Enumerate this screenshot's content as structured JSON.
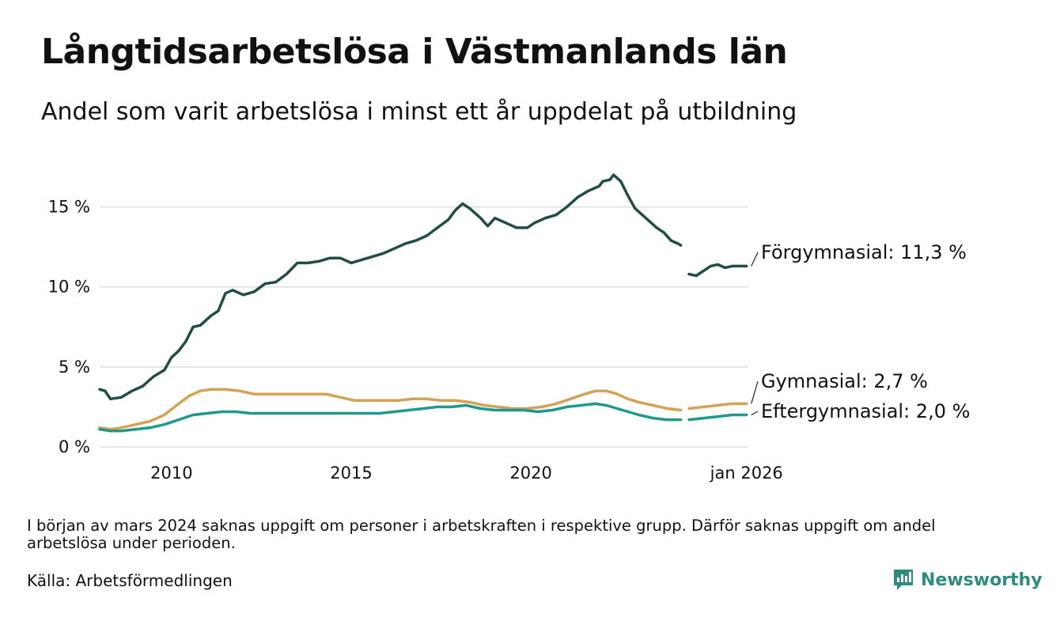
{
  "title": "Långtidsarbetslösa i Västmanlands län",
  "subtitle": "Andel som varit arbetslösa i minst ett år uppdelat på utbildning",
  "note": "I början av mars 2024 saknas uppgift om personer i arbetskraften i respektive grupp. Därför saknas uppgift om andel arbetslösa under perioden.",
  "source": "Källa: Arbetsförmedlingen",
  "brand": {
    "name": "Newsworthy",
    "icon": "newsworthy-logo-icon",
    "color": "#2d8c7e"
  },
  "chart_data": {
    "type": "line",
    "x_unit": "decimal year",
    "xlim": [
      2008.0,
      2026.05
    ],
    "ylim": [
      0,
      17.5
    ],
    "y_ticks": [
      {
        "value": 0,
        "label": "0 %"
      },
      {
        "value": 5,
        "label": "5 %"
      },
      {
        "value": 10,
        "label": "10 %"
      },
      {
        "value": 15,
        "label": "15 %"
      }
    ],
    "x_ticks": [
      {
        "value": 2010,
        "label": "2010"
      },
      {
        "value": 2015,
        "label": "2015"
      },
      {
        "value": 2020,
        "label": "2020"
      },
      {
        "value": 2026.0,
        "label": "jan 2026"
      }
    ],
    "grid": "horizontal",
    "gap": [
      2024.17,
      2024.4
    ],
    "series": [
      {
        "name": "Förgymnasial",
        "label": "Förgymnasial: 11,3 %",
        "color": "#214d47",
        "points": [
          [
            2008.0,
            3.6
          ],
          [
            2008.15,
            3.5
          ],
          [
            2008.3,
            3.0
          ],
          [
            2008.6,
            3.1
          ],
          [
            2008.9,
            3.5
          ],
          [
            2009.2,
            3.8
          ],
          [
            2009.5,
            4.4
          ],
          [
            2009.8,
            4.8
          ],
          [
            2010.0,
            5.6
          ],
          [
            2010.2,
            6.0
          ],
          [
            2010.4,
            6.6
          ],
          [
            2010.6,
            7.5
          ],
          [
            2010.8,
            7.6
          ],
          [
            2011.1,
            8.2
          ],
          [
            2011.3,
            8.5
          ],
          [
            2011.5,
            9.6
          ],
          [
            2011.7,
            9.8
          ],
          [
            2012.0,
            9.5
          ],
          [
            2012.3,
            9.7
          ],
          [
            2012.6,
            10.2
          ],
          [
            2012.9,
            10.3
          ],
          [
            2013.2,
            10.8
          ],
          [
            2013.5,
            11.5
          ],
          [
            2013.8,
            11.5
          ],
          [
            2014.1,
            11.6
          ],
          [
            2014.4,
            11.8
          ],
          [
            2014.7,
            11.8
          ],
          [
            2015.0,
            11.5
          ],
          [
            2015.3,
            11.7
          ],
          [
            2015.6,
            11.9
          ],
          [
            2015.9,
            12.1
          ],
          [
            2016.2,
            12.4
          ],
          [
            2016.5,
            12.7
          ],
          [
            2016.8,
            12.9
          ],
          [
            2017.1,
            13.2
          ],
          [
            2017.4,
            13.7
          ],
          [
            2017.7,
            14.2
          ],
          [
            2017.9,
            14.8
          ],
          [
            2018.1,
            15.2
          ],
          [
            2018.3,
            14.9
          ],
          [
            2018.6,
            14.3
          ],
          [
            2018.8,
            13.8
          ],
          [
            2019.0,
            14.3
          ],
          [
            2019.3,
            14.0
          ],
          [
            2019.6,
            13.7
          ],
          [
            2019.9,
            13.7
          ],
          [
            2020.1,
            14.0
          ],
          [
            2020.4,
            14.3
          ],
          [
            2020.7,
            14.5
          ],
          [
            2021.0,
            15.0
          ],
          [
            2021.3,
            15.6
          ],
          [
            2021.6,
            16.0
          ],
          [
            2021.9,
            16.3
          ],
          [
            2022.0,
            16.6
          ],
          [
            2022.2,
            16.7
          ],
          [
            2022.3,
            17.0
          ],
          [
            2022.5,
            16.6
          ],
          [
            2022.7,
            15.7
          ],
          [
            2022.9,
            14.9
          ],
          [
            2023.1,
            14.5
          ],
          [
            2023.3,
            14.1
          ],
          [
            2023.5,
            13.7
          ],
          [
            2023.7,
            13.4
          ],
          [
            2023.9,
            12.9
          ],
          [
            2024.1,
            12.7
          ],
          [
            2024.17,
            12.6
          ],
          null,
          [
            2024.4,
            10.8
          ],
          [
            2024.6,
            10.7
          ],
          [
            2024.8,
            11.0
          ],
          [
            2025.0,
            11.3
          ],
          [
            2025.2,
            11.4
          ],
          [
            2025.4,
            11.2
          ],
          [
            2025.6,
            11.3
          ],
          [
            2025.8,
            11.3
          ],
          [
            2026.0,
            11.3
          ]
        ]
      },
      {
        "name": "Gymnasial",
        "label": "Gymnasial:  2,7 %",
        "color": "#d4a155",
        "points": [
          [
            2008.0,
            1.2
          ],
          [
            2008.3,
            1.1
          ],
          [
            2008.6,
            1.2
          ],
          [
            2009.0,
            1.4
          ],
          [
            2009.4,
            1.6
          ],
          [
            2009.8,
            2.0
          ],
          [
            2010.2,
            2.7
          ],
          [
            2010.5,
            3.2
          ],
          [
            2010.8,
            3.5
          ],
          [
            2011.1,
            3.6
          ],
          [
            2011.5,
            3.6
          ],
          [
            2011.9,
            3.5
          ],
          [
            2012.3,
            3.3
          ],
          [
            2012.7,
            3.3
          ],
          [
            2013.1,
            3.3
          ],
          [
            2013.5,
            3.3
          ],
          [
            2013.9,
            3.3
          ],
          [
            2014.3,
            3.3
          ],
          [
            2014.7,
            3.1
          ],
          [
            2015.1,
            2.9
          ],
          [
            2015.5,
            2.9
          ],
          [
            2015.9,
            2.9
          ],
          [
            2016.3,
            2.9
          ],
          [
            2016.7,
            3.0
          ],
          [
            2017.1,
            3.0
          ],
          [
            2017.5,
            2.9
          ],
          [
            2017.9,
            2.9
          ],
          [
            2018.3,
            2.8
          ],
          [
            2018.7,
            2.6
          ],
          [
            2019.1,
            2.5
          ],
          [
            2019.5,
            2.4
          ],
          [
            2019.9,
            2.4
          ],
          [
            2020.3,
            2.5
          ],
          [
            2020.7,
            2.7
          ],
          [
            2021.1,
            3.0
          ],
          [
            2021.5,
            3.3
          ],
          [
            2021.8,
            3.5
          ],
          [
            2022.1,
            3.5
          ],
          [
            2022.4,
            3.3
          ],
          [
            2022.7,
            3.0
          ],
          [
            2023.0,
            2.8
          ],
          [
            2023.4,
            2.6
          ],
          [
            2023.8,
            2.4
          ],
          [
            2024.17,
            2.3
          ],
          null,
          [
            2024.4,
            2.4
          ],
          [
            2024.8,
            2.5
          ],
          [
            2025.2,
            2.6
          ],
          [
            2025.6,
            2.7
          ],
          [
            2026.0,
            2.7
          ]
        ]
      },
      {
        "name": "Eftergymnasial",
        "label": "Eftergymnasial:  2,0 %",
        "color": "#1f9a8a",
        "points": [
          [
            2008.0,
            1.1
          ],
          [
            2008.3,
            1.0
          ],
          [
            2008.6,
            1.0
          ],
          [
            2009.0,
            1.1
          ],
          [
            2009.4,
            1.2
          ],
          [
            2009.8,
            1.4
          ],
          [
            2010.2,
            1.7
          ],
          [
            2010.6,
            2.0
          ],
          [
            2011.0,
            2.1
          ],
          [
            2011.4,
            2.2
          ],
          [
            2011.8,
            2.2
          ],
          [
            2012.2,
            2.1
          ],
          [
            2012.6,
            2.1
          ],
          [
            2013.0,
            2.1
          ],
          [
            2013.4,
            2.1
          ],
          [
            2013.8,
            2.1
          ],
          [
            2014.2,
            2.1
          ],
          [
            2014.6,
            2.1
          ],
          [
            2015.0,
            2.1
          ],
          [
            2015.4,
            2.1
          ],
          [
            2015.8,
            2.1
          ],
          [
            2016.2,
            2.2
          ],
          [
            2016.6,
            2.3
          ],
          [
            2017.0,
            2.4
          ],
          [
            2017.4,
            2.5
          ],
          [
            2017.8,
            2.5
          ],
          [
            2018.2,
            2.6
          ],
          [
            2018.6,
            2.4
          ],
          [
            2019.0,
            2.3
          ],
          [
            2019.4,
            2.3
          ],
          [
            2019.8,
            2.3
          ],
          [
            2020.2,
            2.2
          ],
          [
            2020.6,
            2.3
          ],
          [
            2021.0,
            2.5
          ],
          [
            2021.4,
            2.6
          ],
          [
            2021.8,
            2.7
          ],
          [
            2022.1,
            2.6
          ],
          [
            2022.4,
            2.4
          ],
          [
            2022.7,
            2.2
          ],
          [
            2023.0,
            2.0
          ],
          [
            2023.4,
            1.8
          ],
          [
            2023.8,
            1.7
          ],
          [
            2024.17,
            1.7
          ],
          null,
          [
            2024.4,
            1.7
          ],
          [
            2024.8,
            1.8
          ],
          [
            2025.2,
            1.9
          ],
          [
            2025.6,
            2.0
          ],
          [
            2026.0,
            2.0
          ]
        ]
      }
    ]
  }
}
